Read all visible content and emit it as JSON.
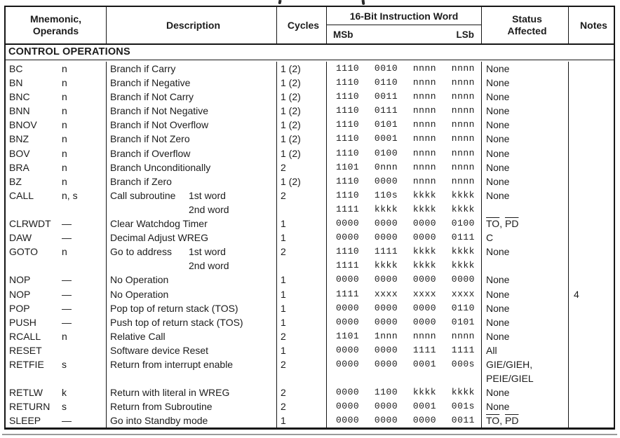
{
  "page": {
    "background": "#ffffff",
    "ink": "#1c1c1c",
    "border_color": "#161616"
  },
  "header": {
    "col_mnemonic_line1": "Mnemonic,",
    "col_mnemonic_line2": "Operands",
    "col_description": "Description",
    "col_cycles": "Cycles",
    "col_instruction": "16-Bit Instruction Word",
    "col_msb": "MSb",
    "col_lsb": "LSb",
    "col_status_line1": "Status",
    "col_status_line2": "Affected",
    "col_notes": "Notes"
  },
  "section_title": "CONTROL OPERATIONS",
  "rows": [
    {
      "mnemonic": "BC",
      "operands": "n",
      "desc": "Branch if Carry",
      "desc_label1": "",
      "desc_label2": "",
      "cycles": "1 (2)",
      "words": [
        "1110 0010 nnnn nnnn"
      ],
      "status": [
        "None"
      ],
      "status_overline": false,
      "notes": ""
    },
    {
      "mnemonic": "BN",
      "operands": "n",
      "desc": "Branch if Negative",
      "desc_label1": "",
      "desc_label2": "",
      "cycles": "1 (2)",
      "words": [
        "1110 0110 nnnn nnnn"
      ],
      "status": [
        "None"
      ],
      "status_overline": false,
      "notes": ""
    },
    {
      "mnemonic": "BNC",
      "operands": "n",
      "desc": "Branch if Not Carry",
      "desc_label1": "",
      "desc_label2": "",
      "cycles": "1 (2)",
      "words": [
        "1110 0011 nnnn nnnn"
      ],
      "status": [
        "None"
      ],
      "status_overline": false,
      "notes": ""
    },
    {
      "mnemonic": "BNN",
      "operands": "n",
      "desc": "Branch if Not Negative",
      "desc_label1": "",
      "desc_label2": "",
      "cycles": "1 (2)",
      "words": [
        "1110 0111 nnnn nnnn"
      ],
      "status": [
        "None"
      ],
      "status_overline": false,
      "notes": ""
    },
    {
      "mnemonic": "BNOV",
      "operands": "n",
      "desc": "Branch if Not Overflow",
      "desc_label1": "",
      "desc_label2": "",
      "cycles": "1 (2)",
      "words": [
        "1110 0101 nnnn nnnn"
      ],
      "status": [
        "None"
      ],
      "status_overline": false,
      "notes": ""
    },
    {
      "mnemonic": "BNZ",
      "operands": "n",
      "desc": "Branch if Not Zero",
      "desc_label1": "",
      "desc_label2": "",
      "cycles": "1 (2)",
      "words": [
        "1110 0001 nnnn nnnn"
      ],
      "status": [
        "None"
      ],
      "status_overline": false,
      "notes": ""
    },
    {
      "mnemonic": "BOV",
      "operands": "n",
      "desc": "Branch if Overflow",
      "desc_label1": "",
      "desc_label2": "",
      "cycles": "1 (2)",
      "words": [
        "1110 0100 nnnn nnnn"
      ],
      "status": [
        "None"
      ],
      "status_overline": false,
      "notes": ""
    },
    {
      "mnemonic": "BRA",
      "operands": "n",
      "desc": "Branch Unconditionally",
      "desc_label1": "",
      "desc_label2": "",
      "cycles": "2",
      "words": [
        "1101 0nnn nnnn nnnn"
      ],
      "status": [
        "None"
      ],
      "status_overline": false,
      "notes": ""
    },
    {
      "mnemonic": "BZ",
      "operands": "n",
      "desc": "Branch if Zero",
      "desc_label1": "",
      "desc_label2": "",
      "cycles": "1 (2)",
      "words": [
        "1110 0000 nnnn nnnn"
      ],
      "status": [
        "None"
      ],
      "status_overline": false,
      "notes": ""
    },
    {
      "mnemonic": "CALL",
      "operands": "n, s",
      "desc": "Call subroutine",
      "desc_label1": "1st word",
      "desc_label2": "2nd word",
      "cycles": "2",
      "words": [
        "1110 110s kkkk kkkk",
        "1111 kkkk kkkk kkkk"
      ],
      "status": [
        "None"
      ],
      "status_overline": false,
      "notes": ""
    },
    {
      "mnemonic": "CLRWDT",
      "operands": "—",
      "desc": "Clear Watchdog Timer",
      "desc_label1": "",
      "desc_label2": "",
      "cycles": "1",
      "words": [
        "0000 0000 0000 0100"
      ],
      "status": [
        "TO, PD"
      ],
      "status_overline": true,
      "notes": ""
    },
    {
      "mnemonic": "DAW",
      "operands": "—",
      "desc": "Decimal Adjust WREG",
      "desc_label1": "",
      "desc_label2": "",
      "cycles": "1",
      "words": [
        "0000 0000 0000 0111"
      ],
      "status": [
        "C"
      ],
      "status_overline": false,
      "notes": ""
    },
    {
      "mnemonic": "GOTO",
      "operands": "n",
      "desc": "Go to address",
      "desc_label1": "1st word",
      "desc_label2": "2nd word",
      "cycles": "2",
      "words": [
        "1110 1111 kkkk kkkk",
        "1111 kkkk kkkk kkkk"
      ],
      "status": [
        "None"
      ],
      "status_overline": false,
      "notes": ""
    },
    {
      "mnemonic": "NOP",
      "operands": "—",
      "desc": "No Operation",
      "desc_label1": "",
      "desc_label2": "",
      "cycles": "1",
      "words": [
        "0000 0000 0000 0000"
      ],
      "status": [
        "None"
      ],
      "status_overline": false,
      "notes": ""
    },
    {
      "mnemonic": "NOP",
      "operands": "—",
      "desc": "No Operation",
      "desc_label1": "",
      "desc_label2": "",
      "cycles": "1",
      "words": [
        "1111 xxxx xxxx xxxx"
      ],
      "status": [
        "None"
      ],
      "status_overline": false,
      "notes": "4"
    },
    {
      "mnemonic": "POP",
      "operands": "—",
      "desc": "Pop top of return stack (TOS)",
      "desc_label1": "",
      "desc_label2": "",
      "cycles": "1",
      "words": [
        "0000 0000 0000 0110"
      ],
      "status": [
        "None"
      ],
      "status_overline": false,
      "notes": ""
    },
    {
      "mnemonic": "PUSH",
      "operands": "—",
      "desc": "Push top of return stack (TOS)",
      "desc_label1": "",
      "desc_label2": "",
      "cycles": "1",
      "words": [
        "0000 0000 0000 0101"
      ],
      "status": [
        "None"
      ],
      "status_overline": false,
      "notes": ""
    },
    {
      "mnemonic": "RCALL",
      "operands": "n",
      "desc": "Relative Call",
      "desc_label1": "",
      "desc_label2": "",
      "cycles": "2",
      "words": [
        "1101 1nnn nnnn nnnn"
      ],
      "status": [
        "None"
      ],
      "status_overline": false,
      "notes": ""
    },
    {
      "mnemonic": "RESET",
      "operands": "",
      "desc": "Software device Reset",
      "desc_label1": "",
      "desc_label2": "",
      "cycles": "1",
      "words": [
        "0000 0000 1111 1111"
      ],
      "status": [
        "All"
      ],
      "status_overline": false,
      "notes": ""
    },
    {
      "mnemonic": "RETFIE",
      "operands": "s",
      "desc": "Return from interrupt enable",
      "desc_label1": "",
      "desc_label2": "",
      "cycles": "2",
      "words": [
        "0000 0000 0001 000s"
      ],
      "status": [
        "GIE/GIEH,",
        "PEIE/GIEL"
      ],
      "status_overline": false,
      "notes": ""
    },
    {
      "mnemonic": "RETLW",
      "operands": "k",
      "desc": "Return with literal in WREG",
      "desc_label1": "",
      "desc_label2": "",
      "cycles": "2",
      "words": [
        "0000 1100 kkkk kkkk"
      ],
      "status": [
        "None"
      ],
      "status_overline": false,
      "notes": ""
    },
    {
      "mnemonic": "RETURN",
      "operands": "s",
      "desc": "Return from Subroutine",
      "desc_label1": "",
      "desc_label2": "",
      "cycles": "2",
      "words": [
        "0000 0000 0001 001s"
      ],
      "status": [
        "None"
      ],
      "status_overline": false,
      "notes": ""
    },
    {
      "mnemonic": "SLEEP",
      "operands": "—",
      "desc": "Go into Standby mode",
      "desc_label1": "",
      "desc_label2": "",
      "cycles": "1",
      "words": [
        "0000 0000 0000 0011"
      ],
      "status": [
        "TO, PD"
      ],
      "status_overline": true,
      "notes": ""
    }
  ]
}
